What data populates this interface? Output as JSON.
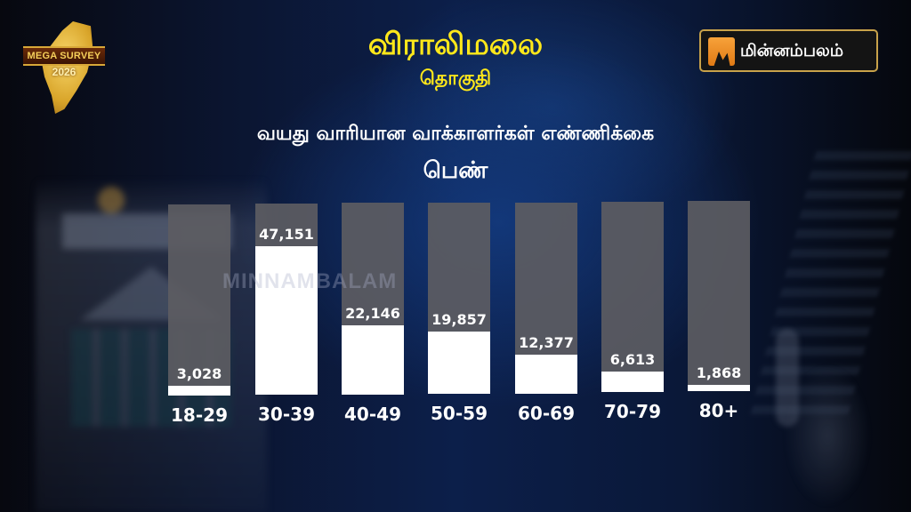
{
  "header": {
    "constituency": "விராலிமலை",
    "constituency_label": "தொகுதி",
    "logo_left": {
      "line1": "MEGA SURVEY",
      "line2": "2026"
    },
    "brand": {
      "name": "மின்னம்பலம்",
      "accent": "#f08a20",
      "border": "#c8a24a"
    }
  },
  "watermark": "MINNAMBALAM",
  "chart_data": {
    "type": "bar",
    "title": "வயது வாரியான வாக்காளர்கள் எண்ணிக்கை",
    "subtitle": "பெண்",
    "xlabel": "",
    "ylabel": "",
    "categories": [
      "18-29",
      "30-39",
      "40-49",
      "50-59",
      "60-69",
      "70-79",
      "80+"
    ],
    "values": [
      3028,
      47151,
      22146,
      19857,
      12377,
      6613,
      1868
    ],
    "value_labels": [
      "3,028",
      "47,151",
      "22,146",
      "19,857",
      "12,377",
      "6,613",
      "1,868"
    ],
    "ylim": [
      0,
      60000
    ],
    "grid": false,
    "legend": "none",
    "colors": {
      "fill": "#ffffff",
      "track": "#5c5c62",
      "title": "#ffe81a",
      "text": "#ffffff"
    }
  }
}
